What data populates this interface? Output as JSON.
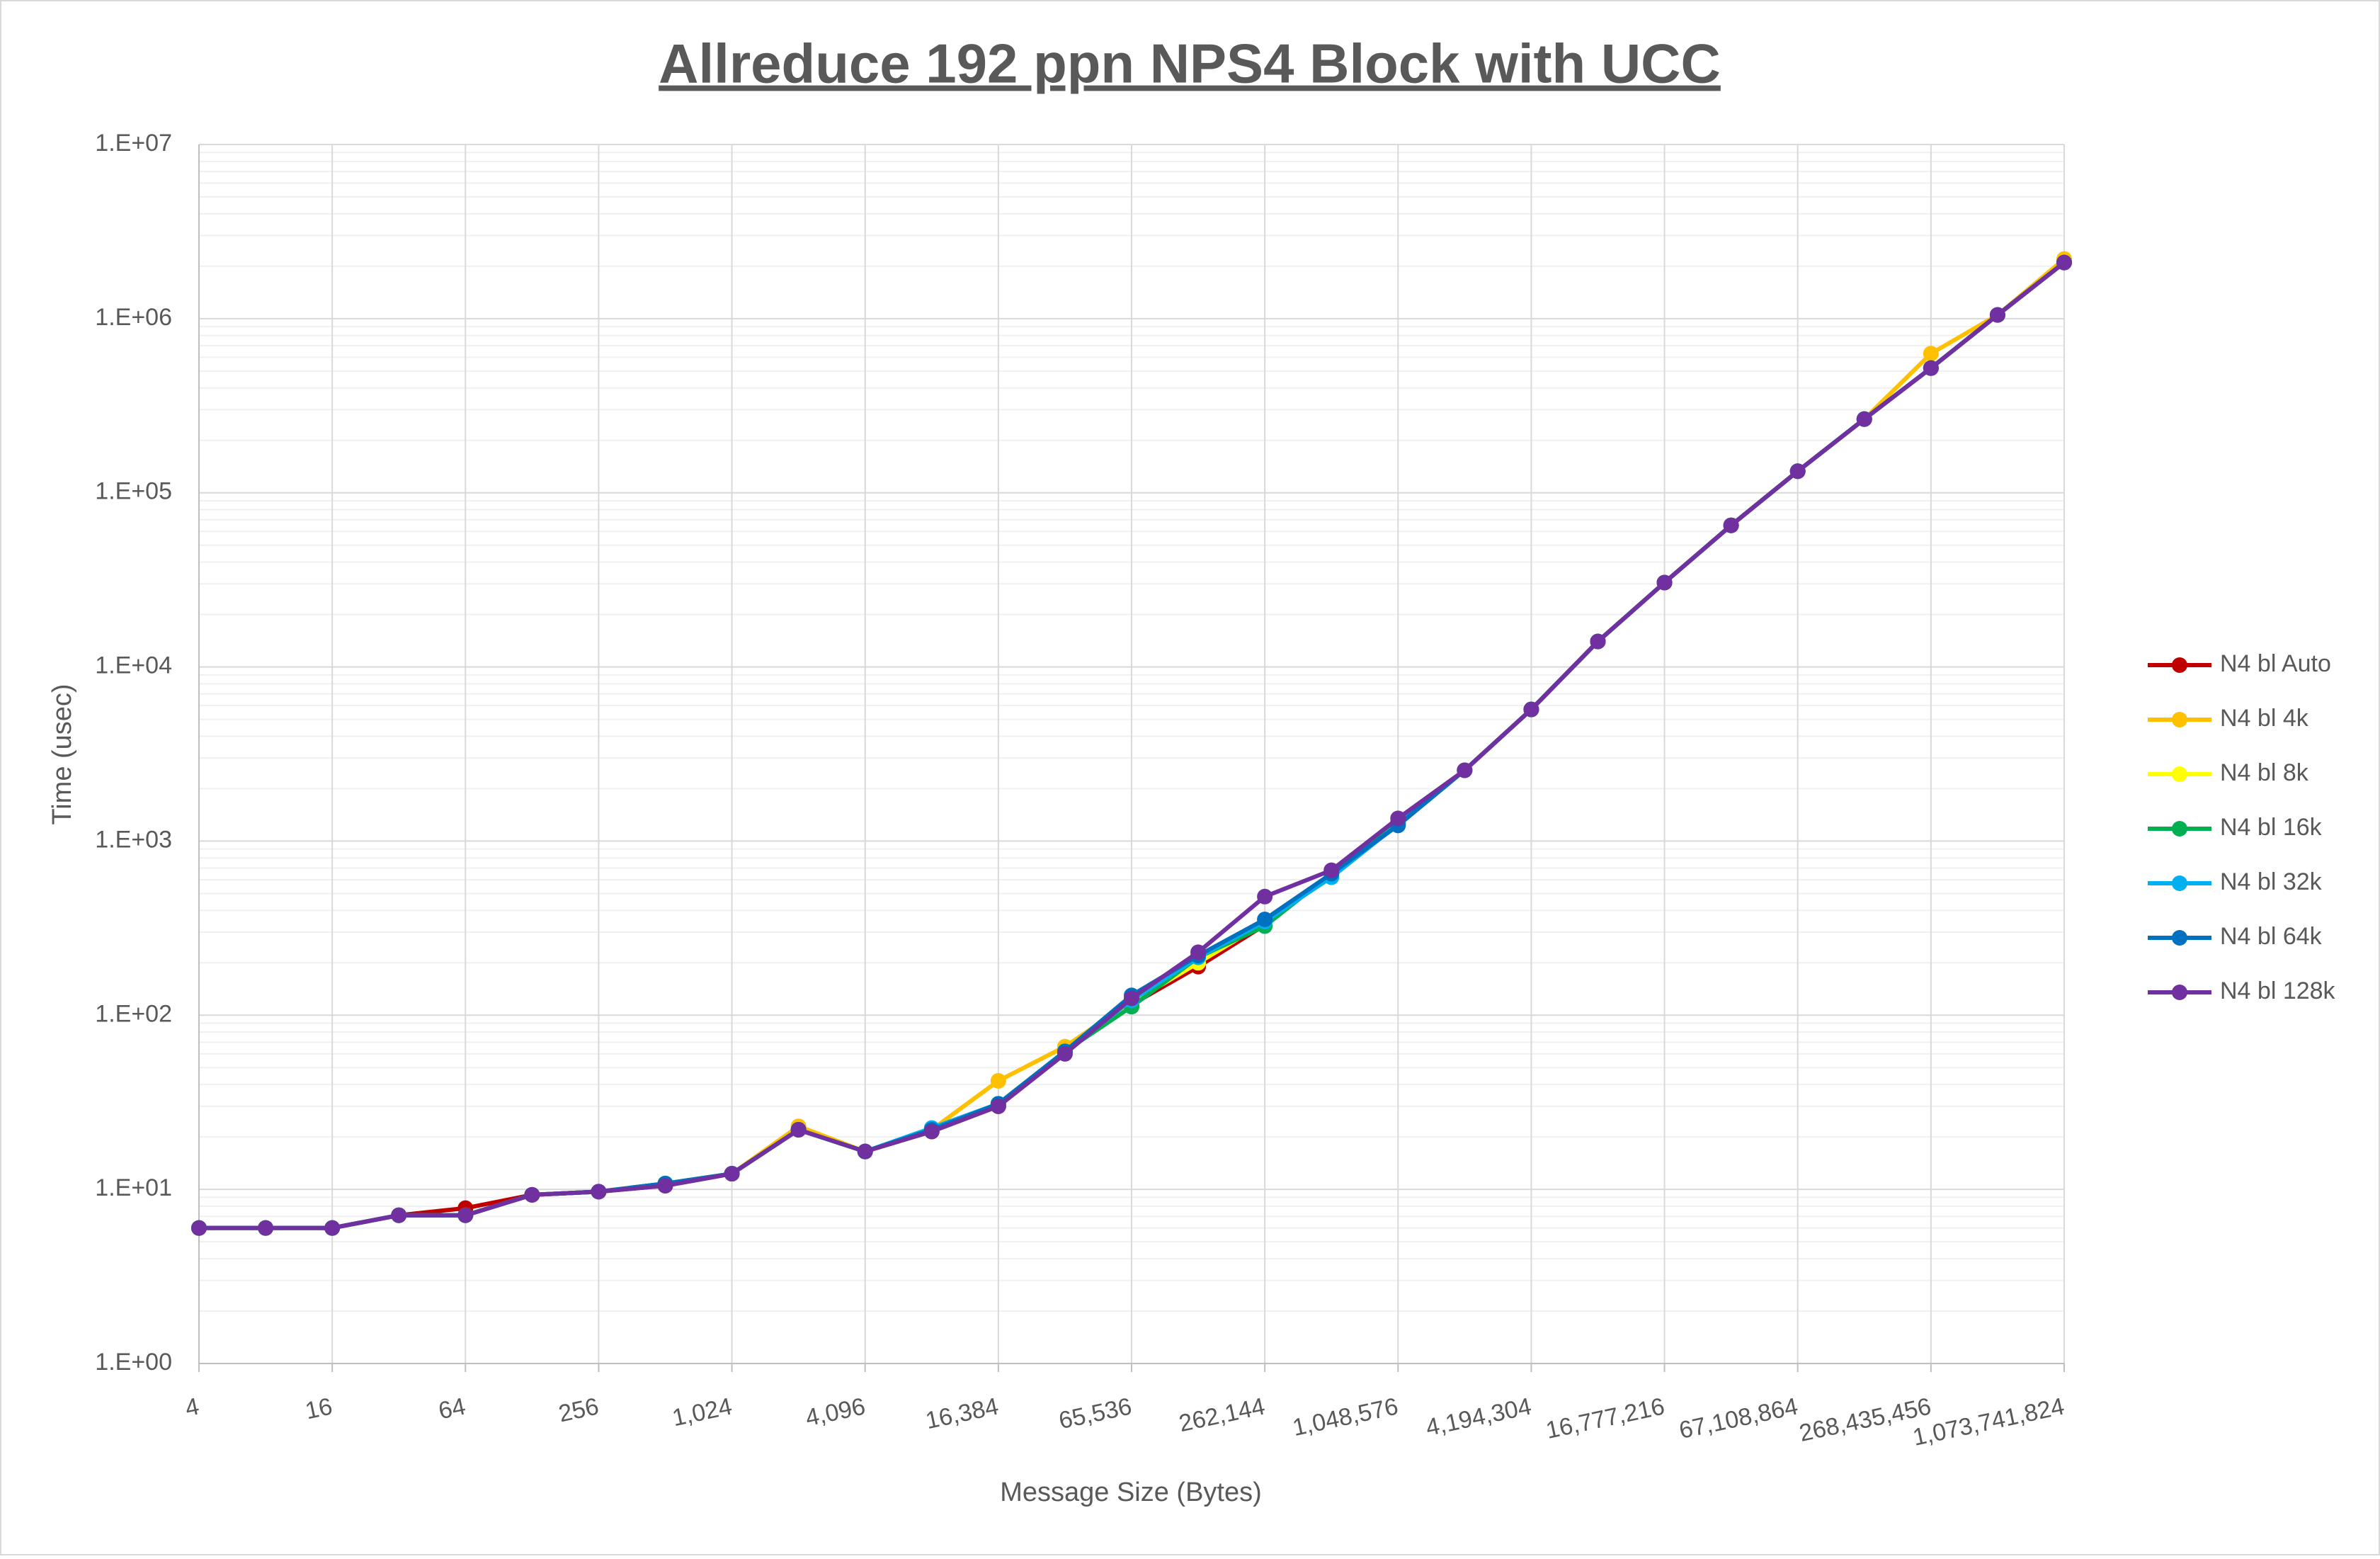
{
  "chart_data": {
    "type": "line",
    "title": "Allreduce 192 ppn NPS4 Block with UCC",
    "x_label": "Message Size (Bytes)",
    "y_label": "Time (usec)",
    "x_log_base": 2,
    "y_log": true,
    "grid": true,
    "minor_grid": true,
    "legend": "right",
    "x": [
      4,
      8,
      16,
      32,
      64,
      128,
      256,
      512,
      1024,
      2048,
      4096,
      8192,
      16384,
      32768,
      65536,
      131072,
      262144,
      524288,
      1048576,
      2097152,
      4194304,
      8388608,
      16777216,
      33554432,
      67108864,
      134217728,
      268435456,
      536870912,
      1073741824
    ],
    "xlim": [
      4,
      1073741824
    ],
    "xticks": [
      4,
      16,
      64,
      256,
      {
        "value": 1024,
        "label": "1,024"
      },
      {
        "value": 4096,
        "label": "4,096"
      },
      {
        "value": 16384,
        "label": "16,384"
      },
      {
        "value": 65536,
        "label": "65,536"
      },
      {
        "value": 262144,
        "label": "262,144"
      },
      {
        "value": 1048576,
        "label": "1,048,576"
      },
      {
        "value": 4194304,
        "label": "4,194,304"
      },
      {
        "value": 16777216,
        "label": "16,777,216"
      },
      {
        "value": 67108864,
        "label": "67,108,864"
      },
      {
        "value": 268435456,
        "label": "268,435,456"
      },
      {
        "value": 1073741824,
        "label": "1,073,741,824"
      }
    ],
    "ylim": [
      1,
      10000000
    ],
    "yticks": [
      {
        "value": 1,
        "label": "1.E+00"
      },
      {
        "value": 10,
        "label": "1.E+01"
      },
      {
        "value": 100,
        "label": "1.E+02"
      },
      {
        "value": 1000,
        "label": "1.E+03"
      },
      {
        "value": 10000,
        "label": "1.E+04"
      },
      {
        "value": 100000,
        "label": "1.E+05"
      },
      {
        "value": 1000000,
        "label": "1.E+06"
      },
      {
        "value": 10000000,
        "label": "1.E+07"
      }
    ],
    "series": [
      {
        "name": "N4 bl Auto",
        "color": "#c00000",
        "values": [
          6,
          6,
          6,
          7.1,
          7.8,
          9.3,
          9.7,
          10.5,
          12.3,
          22,
          16.5,
          21.5,
          30,
          62,
          115,
          190,
          330,
          650,
          1280,
          2550,
          5700,
          14000,
          30500,
          65000,
          133000,
          265000,
          520000,
          1050000,
          2100000
        ]
      },
      {
        "name": "N4 bl 4k",
        "color": "#ffc000",
        "values": [
          6,
          6,
          6,
          7.1,
          7.1,
          9.3,
          9.7,
          10.8,
          12.3,
          23,
          16.5,
          22,
          42,
          66,
          120,
          215,
          340,
          650,
          1280,
          2550,
          5700,
          14000,
          30500,
          65000,
          133000,
          265000,
          630000,
          1050000,
          2200000
        ]
      },
      {
        "name": "N4 bl 8k",
        "color": "#ffff00",
        "values": [
          6,
          6,
          6,
          7.1,
          7.1,
          9.3,
          9.7,
          10.8,
          12.3,
          22,
          16.5,
          22,
          31,
          62,
          118,
          200,
          340,
          650,
          1280,
          2550,
          5700,
          14000,
          30500,
          65000,
          133000,
          265000,
          520000,
          1050000,
          2100000
        ]
      },
      {
        "name": "N4 bl 16k",
        "color": "#00b050",
        "values": [
          6,
          6,
          6,
          7.1,
          7.1,
          9.3,
          9.7,
          10.8,
          12.3,
          22,
          16.5,
          22,
          31,
          62,
          112,
          215,
          325,
          650,
          1280,
          2550,
          5700,
          14000,
          30500,
          65000,
          133000,
          265000,
          520000,
          1050000,
          2100000
        ]
      },
      {
        "name": "N4 bl 32k",
        "color": "#00b0f0",
        "values": [
          6,
          6,
          6,
          7.1,
          7.1,
          9.3,
          9.7,
          10.8,
          12.3,
          22,
          16.5,
          22.5,
          31,
          62,
          122,
          215,
          345,
          620,
          1250,
          2550,
          5700,
          14000,
          30500,
          65000,
          133000,
          265000,
          520000,
          1050000,
          2100000
        ]
      },
      {
        "name": "N4 bl 64k",
        "color": "#0070c0",
        "values": [
          6,
          6,
          6,
          7.1,
          7.1,
          9.3,
          9.7,
          10.8,
          12.3,
          22,
          16.5,
          22,
          31,
          62,
          130,
          220,
          355,
          650,
          1230,
          2550,
          5700,
          14000,
          30500,
          65000,
          133000,
          265000,
          520000,
          1050000,
          2100000
        ]
      },
      {
        "name": "N4 bl 128k",
        "color": "#7030a0",
        "values": [
          6,
          6,
          6,
          7.1,
          7.1,
          9.3,
          9.7,
          10.5,
          12.3,
          22,
          16.5,
          21.5,
          30,
          60,
          125,
          230,
          480,
          680,
          1350,
          2550,
          5700,
          14000,
          30500,
          65000,
          133000,
          265000,
          520000,
          1050000,
          2100000
        ]
      }
    ]
  }
}
